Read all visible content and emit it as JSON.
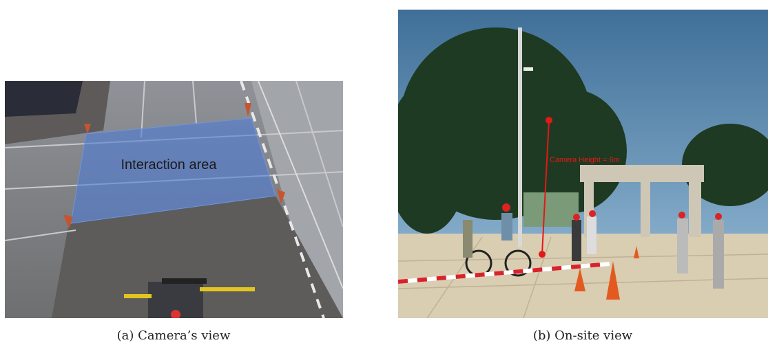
{
  "figure": {
    "panels": [
      {
        "annotation": "Interaction area",
        "caption": "(a) Camera’s view"
      },
      {
        "annotation": "Camera Height = 6m",
        "caption": "(b) On-site view"
      }
    ]
  }
}
